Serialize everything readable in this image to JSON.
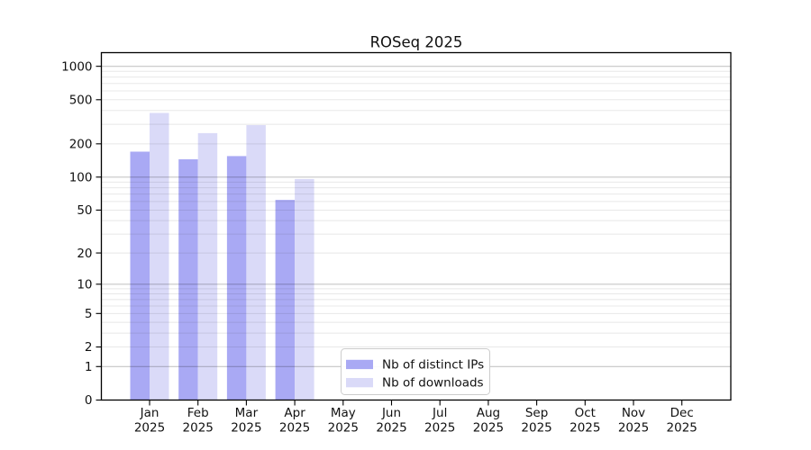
{
  "chart_data": {
    "type": "bar",
    "title": "ROSeq 2025",
    "scale": "log10(1+x)",
    "grid": "on",
    "categories": [
      "Jan",
      "Feb",
      "Mar",
      "Apr",
      "May",
      "Jun",
      "Jul",
      "Aug",
      "Sep",
      "Oct",
      "Nov",
      "Dec"
    ],
    "year_label": "2025",
    "series": [
      {
        "name": "Nb of distinct IPs",
        "color": "#a9a9f4",
        "values": [
          170,
          145,
          155,
          62,
          0,
          0,
          0,
          0,
          0,
          0,
          0,
          0
        ]
      },
      {
        "name": "Nb of downloads",
        "color": "#dadaf8",
        "values": [
          380,
          250,
          295,
          96,
          0,
          0,
          0,
          0,
          0,
          0,
          0,
          0
        ]
      }
    ],
    "y_ticks": [
      0,
      1,
      2,
      5,
      10,
      20,
      50,
      100,
      200,
      500,
      1000
    ],
    "ylim": [
      0,
      1300
    ],
    "xlabel": "",
    "ylabel": "",
    "legend": {
      "position": "lower center",
      "entries": [
        "Nb of distinct IPs",
        "Nb of downloads"
      ]
    },
    "colors": {
      "major_grid": "#c6c6c6",
      "minor_grid": "#e8e8e8",
      "spine": "#000000",
      "legend_border": "#cccccc",
      "legend_background": "#ffffff"
    }
  }
}
